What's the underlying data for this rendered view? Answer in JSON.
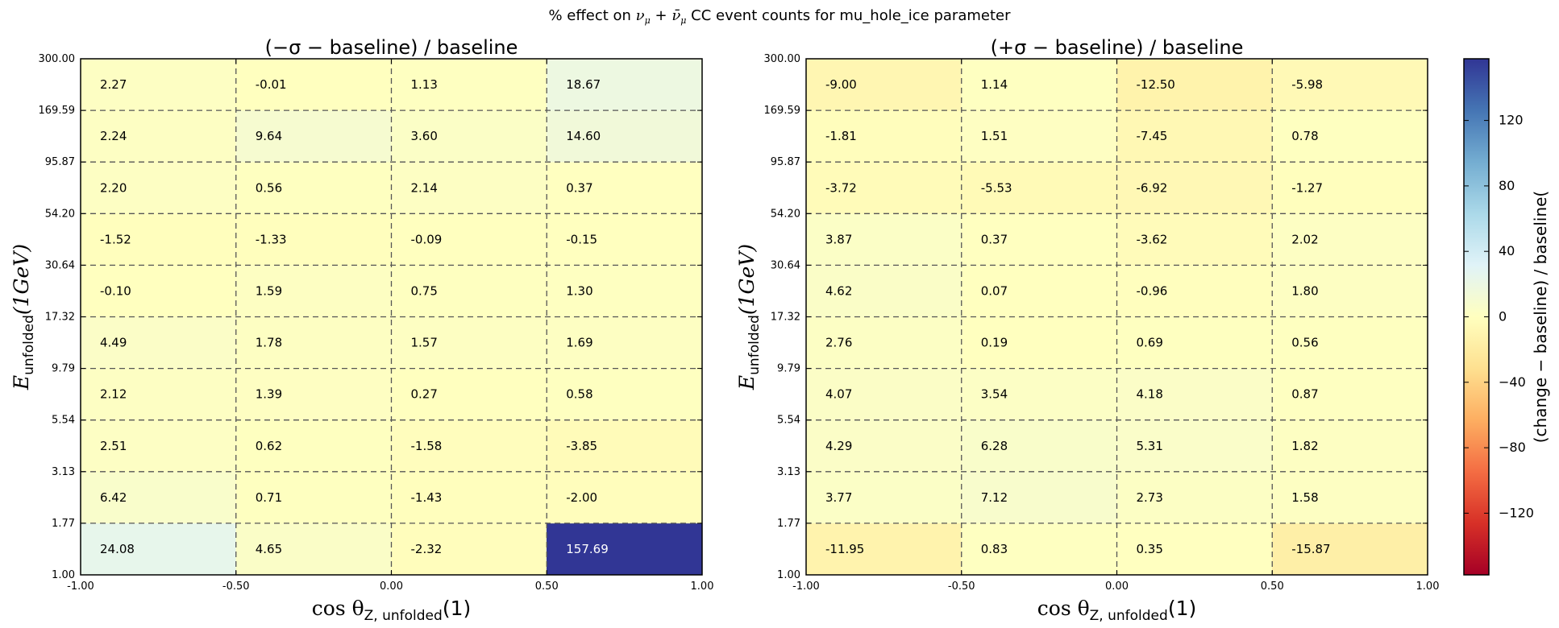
{
  "figure": {
    "suptitle_parts": [
      "% effect on ",
      "ν",
      "μ",
      " + ",
      "ν̄",
      "μ",
      " CC event counts for mu_hole_ice parameter"
    ]
  },
  "colorbar": {
    "label": "(change − baseline) / baseline(",
    "ticks": [
      "120",
      "80",
      "40",
      "0",
      "−40",
      "−80",
      "−120"
    ],
    "tick_values": [
      120,
      80,
      40,
      0,
      -40,
      -80,
      -120
    ],
    "range": [
      -157.69,
      157.69
    ],
    "colormap": "RdYlBu",
    "colormap_stops": [
      "#a50026",
      "#d73027",
      "#f46d43",
      "#fdae61",
      "#fee090",
      "#ffffbf",
      "#e0f3f8",
      "#abd9e9",
      "#74add1",
      "#4575b4",
      "#313695"
    ]
  },
  "chart_data": [
    {
      "type": "heatmap",
      "title": "(−σ − baseline) / baseline",
      "xlabel": "cos θ",
      "xlabel_sub": "Z, unfolded",
      "xlabel_unit": "(1)",
      "ylabel": "E",
      "ylabel_sub": "unfolded",
      "ylabel_unit": "(1GeV)",
      "x_edges": [
        "-1.00",
        "-0.50",
        "0.00",
        "0.50",
        "1.00"
      ],
      "y_edges": [
        "1.00",
        "1.77",
        "3.13",
        "5.54",
        "9.79",
        "17.32",
        "30.64",
        "54.20",
        "95.87",
        "169.59",
        "300.00"
      ],
      "grid": "dashed",
      "values": [
        [
          24.08,
          4.65,
          -2.32,
          157.69
        ],
        [
          6.42,
          0.71,
          -1.43,
          -2.0
        ],
        [
          2.51,
          0.62,
          -1.58,
          -3.85
        ],
        [
          2.12,
          1.39,
          0.27,
          0.58
        ],
        [
          4.49,
          1.78,
          1.57,
          1.69
        ],
        [
          -0.1,
          1.59,
          0.75,
          1.3
        ],
        [
          -1.52,
          -1.33,
          -0.09,
          -0.15
        ],
        [
          2.2,
          0.56,
          2.14,
          0.37
        ],
        [
          2.24,
          9.64,
          3.6,
          14.6
        ],
        [
          2.27,
          -0.01,
          1.13,
          18.67
        ]
      ]
    },
    {
      "type": "heatmap",
      "title": "(+σ − baseline) / baseline",
      "xlabel": "cos θ",
      "xlabel_sub": "Z, unfolded",
      "xlabel_unit": "(1)",
      "ylabel": "E",
      "ylabel_sub": "unfolded",
      "ylabel_unit": "(1GeV)",
      "x_edges": [
        "-1.00",
        "-0.50",
        "0.00",
        "0.50",
        "1.00"
      ],
      "y_edges": [
        "1.00",
        "1.77",
        "3.13",
        "5.54",
        "9.79",
        "17.32",
        "30.64",
        "54.20",
        "95.87",
        "169.59",
        "300.00"
      ],
      "grid": "dashed",
      "values": [
        [
          -11.95,
          0.83,
          0.35,
          -15.87
        ],
        [
          3.77,
          7.12,
          2.73,
          1.58
        ],
        [
          4.29,
          6.28,
          5.31,
          1.82
        ],
        [
          4.07,
          3.54,
          4.18,
          0.87
        ],
        [
          2.76,
          0.19,
          0.69,
          0.56
        ],
        [
          4.62,
          0.07,
          -0.96,
          1.8
        ],
        [
          3.87,
          0.37,
          -3.62,
          2.02
        ],
        [
          -3.72,
          -5.53,
          -6.92,
          -1.27
        ],
        [
          -1.81,
          1.51,
          -7.45,
          0.78
        ],
        [
          -9.0,
          1.14,
          -12.5,
          -5.98
        ]
      ]
    }
  ]
}
